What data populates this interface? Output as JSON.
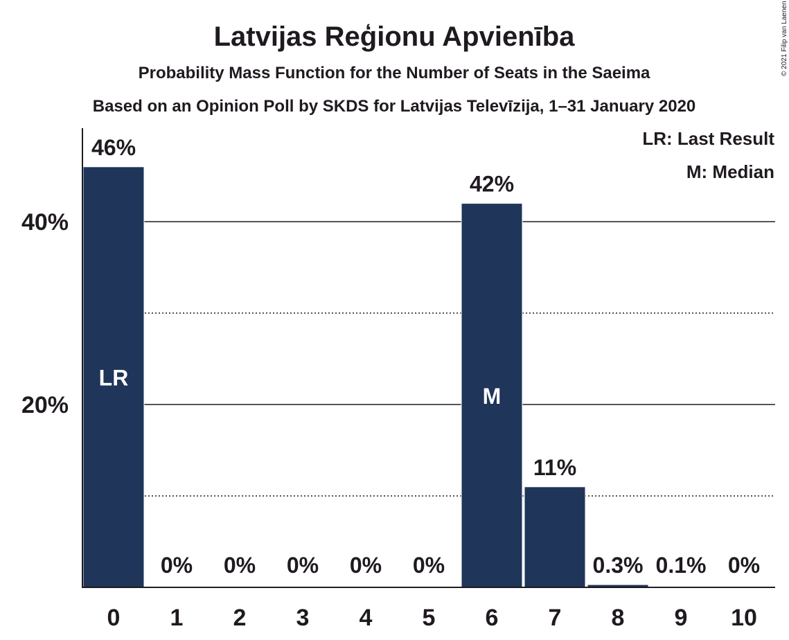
{
  "chart_data": {
    "type": "bar",
    "title": "Latvijas Reģionu Apvienība",
    "subtitle": "Probability Mass Function for the Number of Seats in the Saeima",
    "subtitle2": "Based on an Opinion Poll by SKDS for Latvijas Televīzija, 1–31 January 2020",
    "categories": [
      "0",
      "1",
      "2",
      "3",
      "4",
      "5",
      "6",
      "7",
      "8",
      "9",
      "10"
    ],
    "values": [
      46,
      0,
      0,
      0,
      0,
      0,
      42,
      11,
      0.3,
      0.1,
      0
    ],
    "data_labels": [
      "46%",
      "0%",
      "0%",
      "0%",
      "0%",
      "0%",
      "42%",
      "11%",
      "0.3%",
      "0.1%",
      "0%"
    ],
    "ylim": [
      0,
      49.7
    ],
    "yticks": [
      20,
      40
    ],
    "ytick_labels": [
      "20%",
      "40%"
    ],
    "minor_gridlines": [
      10,
      30
    ],
    "bar_color": "#1f3559",
    "markers": [
      {
        "category": "0",
        "label": "LR"
      },
      {
        "category": "6",
        "label": "M"
      }
    ],
    "legend": {
      "position": "top-right",
      "entries": [
        "LR: Last Result",
        "M: Median"
      ]
    },
    "copyright": "© 2021 Filip van Laenen"
  }
}
